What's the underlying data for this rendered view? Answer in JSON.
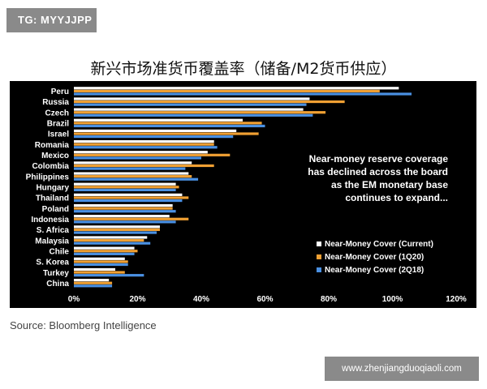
{
  "tag_badge": "TG: MYYJJPP",
  "chart_title": "新兴市场准货币覆盖率（储备/M2货币供应）",
  "source_note": "Source: Bloomberg Intelligence",
  "site_badge": "www.zhenjiangduoqiaoli.com",
  "annotation": [
    "Near-money reserve coverage",
    "has declined across the board",
    "as the EM monetary base",
    "continues to expand..."
  ],
  "colors": {
    "background": "#000000",
    "current": "#ffffff",
    "1q20": "#f0a033",
    "2q18": "#4a90e2",
    "axis_text": "#ffffff"
  },
  "chart_data": {
    "type": "bar",
    "orientation": "horizontal",
    "categories": [
      "Peru",
      "Russia",
      "Czech",
      "Brazil",
      "Israel",
      "Romania",
      "Mexico",
      "Colombia",
      "Philippines",
      "Hungary",
      "Thailand",
      "Poland",
      "Indonesia",
      "S. Africa",
      "Malaysia",
      "Chile",
      "S. Korea",
      "Turkey",
      "China"
    ],
    "series": [
      {
        "name": "Near-Money Cover (Current)",
        "values": [
          102,
          74,
          72,
          53,
          51,
          44,
          42,
          37,
          36,
          32,
          34,
          31,
          30,
          27,
          23,
          19,
          16,
          13,
          11
        ]
      },
      {
        "name": "Near-Money Cover (1Q20)",
        "values": [
          96,
          85,
          79,
          59,
          58,
          44,
          49,
          44,
          37,
          33,
          36,
          31,
          36,
          27,
          22,
          20,
          17,
          16,
          12
        ]
      },
      {
        "name": "Near-Money Cover (2Q18)",
        "values": [
          106,
          73,
          75,
          60,
          50,
          45,
          40,
          35,
          39,
          32,
          34,
          32,
          32,
          26,
          24,
          19,
          17,
          22,
          12
        ]
      }
    ],
    "x_ticks": [
      "0%",
      "20%",
      "40%",
      "60%",
      "80%",
      "100%",
      "120%"
    ],
    "xlim": [
      0,
      120
    ],
    "legend_position": "bottom-right",
    "grid": false
  }
}
